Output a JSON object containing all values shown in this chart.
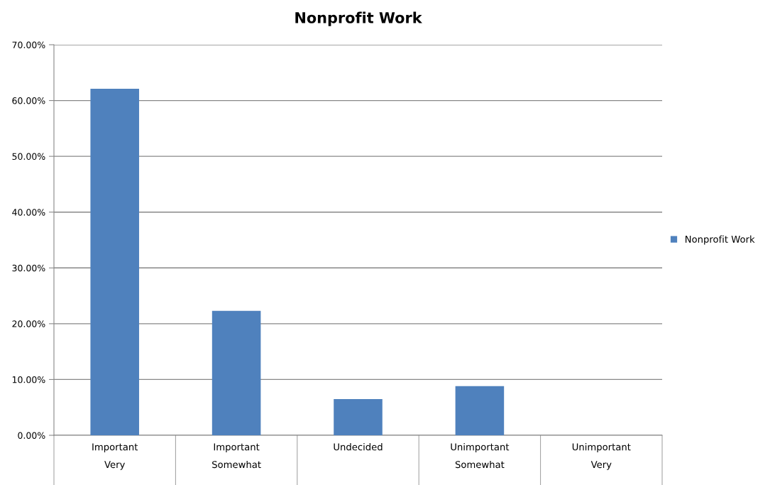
{
  "chart_data": {
    "type": "bar",
    "title": "Nonprofit Work",
    "categories": [
      "Important\nVery",
      "Important\nSomewhat",
      "Undecided",
      "Unimportant\nSomewhat",
      "Unimportant\nVery"
    ],
    "series": [
      {
        "name": "Nonprofit Work",
        "color": "#4f81bd",
        "values": [
          62.1,
          22.3,
          6.5,
          8.8,
          0
        ]
      }
    ],
    "ylim": [
      0,
      70
    ],
    "yticks": [
      {
        "value": 0,
        "label": "0.00%"
      },
      {
        "value": 10,
        "label": "10.00%"
      },
      {
        "value": 20,
        "label": "20.00%"
      },
      {
        "value": 30,
        "label": "30.00%"
      },
      {
        "value": 40,
        "label": "40.00%"
      },
      {
        "value": 50,
        "label": "50.00%"
      },
      {
        "value": 60,
        "label": "60.00%"
      },
      {
        "value": 70,
        "label": "70.00%"
      }
    ],
    "grid": "y",
    "legend": "right"
  }
}
